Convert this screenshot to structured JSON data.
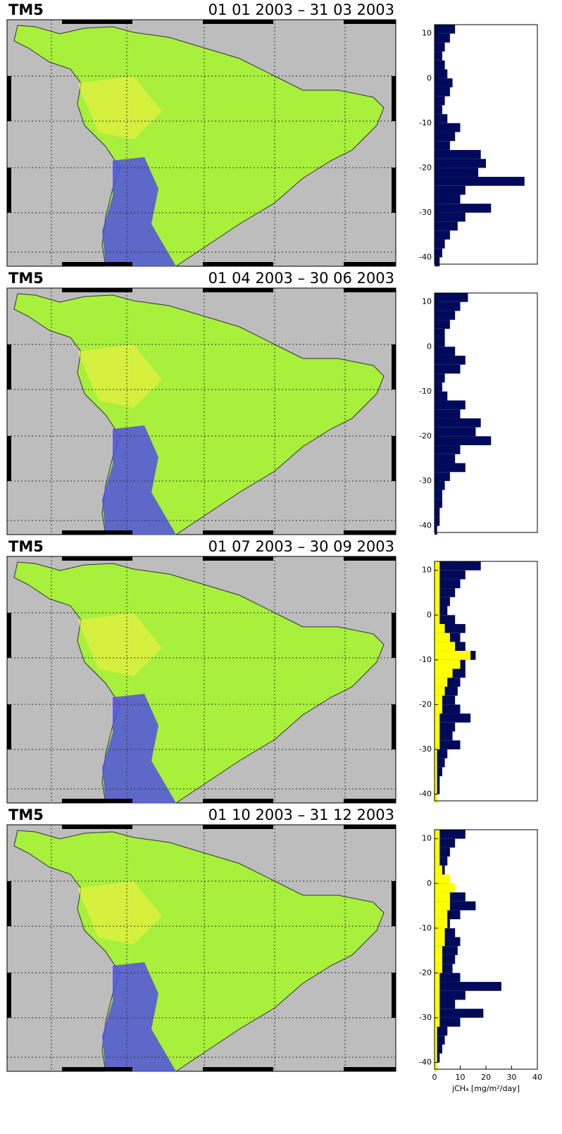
{
  "maps": [
    {
      "model": "TM5",
      "period": "01 01 2003 – 31 03 2003"
    },
    {
      "model": "TM5",
      "period": "01 04 2003 – 30 06 2003"
    },
    {
      "model": "TM5",
      "period": "01 07 2003 – 30 09 2003"
    },
    {
      "model": "TM5",
      "period": "01 10 2003 – 31 12 2003"
    }
  ],
  "chart_data": [
    {
      "type": "barh",
      "y": [
        -41,
        -39,
        -37,
        -35,
        -33,
        -31,
        -29,
        -27,
        -25,
        -23,
        -21,
        -19,
        -17,
        -15,
        -13,
        -11,
        -9,
        -7,
        -5,
        -3,
        -1,
        1,
        3,
        5,
        7,
        9,
        11
      ],
      "series": [
        {
          "color": "#000a5a",
          "values": [
            2,
            3,
            4,
            6,
            9,
            12,
            22,
            10,
            12,
            35,
            17,
            20,
            18,
            6,
            8,
            10,
            5,
            3,
            4,
            6,
            7,
            5,
            4,
            3,
            4,
            6,
            8
          ]
        }
      ],
      "xlim": [
        0,
        40
      ],
      "ylim": [
        -41.5,
        12
      ],
      "yticks": [
        -40,
        -30,
        -20,
        -10,
        0,
        10
      ]
    },
    {
      "type": "barh",
      "y": [
        -41,
        -39,
        -37,
        -35,
        -33,
        -31,
        -29,
        -27,
        -25,
        -23,
        -21,
        -19,
        -17,
        -15,
        -13,
        -11,
        -9,
        -7,
        -5,
        -3,
        -1,
        1,
        3,
        5,
        7,
        9,
        11
      ],
      "series": [
        {
          "color": "#000a5a",
          "values": [
            1,
            2,
            2,
            3,
            3,
            4,
            6,
            12,
            8,
            10,
            22,
            16,
            18,
            10,
            12,
            5,
            3,
            4,
            10,
            12,
            8,
            4,
            4,
            6,
            8,
            10,
            13
          ]
        }
      ],
      "xlim": [
        0,
        40
      ],
      "ylim": [
        -41.5,
        12
      ],
      "yticks": [
        -40,
        -30,
        -20,
        -10,
        0,
        10
      ]
    },
    {
      "type": "barh",
      "y": [
        -41,
        -39,
        -37,
        -35,
        -33,
        -31,
        -29,
        -27,
        -25,
        -23,
        -21,
        -19,
        -17,
        -15,
        -13,
        -11,
        -9,
        -7,
        -5,
        -3,
        -1,
        1,
        3,
        5,
        7,
        9,
        11
      ],
      "series": [
        {
          "color": "#000a5a",
          "values": [
            1,
            2,
            2,
            3,
            4,
            5,
            10,
            7,
            8,
            14,
            10,
            8,
            9,
            10,
            12,
            12,
            16,
            12,
            10,
            12,
            8,
            5,
            6,
            8,
            10,
            12,
            18
          ]
        },
        {
          "color": "#ffff00",
          "values": [
            1,
            1,
            1,
            1,
            1,
            1,
            2,
            2,
            2,
            2,
            3,
            3,
            4,
            5,
            7,
            10,
            14,
            8,
            6,
            4,
            2,
            2,
            2,
            2,
            2,
            2,
            2
          ]
        }
      ],
      "xlim": [
        0,
        40
      ],
      "ylim": [
        -41.5,
        12
      ],
      "yticks": [
        -40,
        -30,
        -20,
        -10,
        0,
        10
      ]
    },
    {
      "type": "barh",
      "y": [
        -41,
        -39,
        -37,
        -35,
        -33,
        -31,
        -29,
        -27,
        -25,
        -23,
        -21,
        -19,
        -17,
        -15,
        -13,
        -11,
        -9,
        -7,
        -5,
        -3,
        -1,
        1,
        3,
        5,
        7,
        9,
        11
      ],
      "series": [
        {
          "color": "#000a5a",
          "values": [
            1,
            2,
            3,
            4,
            5,
            10,
            19,
            8,
            12,
            26,
            10,
            7,
            8,
            9,
            10,
            8,
            6,
            10,
            16,
            12,
            7,
            5,
            4,
            5,
            6,
            8,
            12
          ]
        },
        {
          "color": "#ffff00",
          "values": [
            1,
            1,
            1,
            1,
            1,
            2,
            2,
            2,
            2,
            2,
            2,
            3,
            3,
            3,
            4,
            4,
            5,
            5,
            6,
            6,
            8,
            6,
            3,
            2,
            2,
            2,
            2
          ]
        }
      ],
      "xlim": [
        0,
        40
      ],
      "ylim": [
        -41.5,
        12
      ],
      "yticks": [
        -40,
        -30,
        -20,
        -10,
        0,
        10
      ],
      "xticks": [
        0,
        10,
        20,
        30,
        40
      ],
      "xlabel": "jCH₄ [mg/m²/day]"
    }
  ]
}
